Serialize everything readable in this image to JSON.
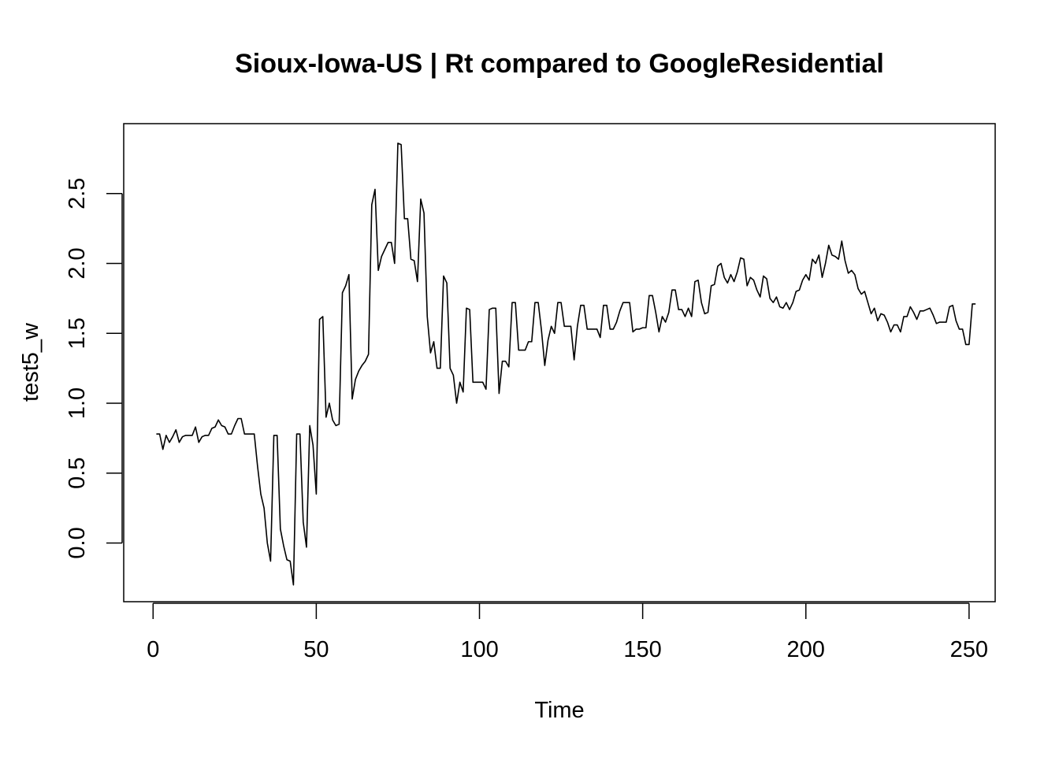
{
  "chart_data": {
    "type": "line",
    "title": "Sioux-Iowa-US | Rt compared to GoogleResidential",
    "xlabel": "Time",
    "ylabel": "test5_w",
    "xlim": [
      -9,
      258
    ],
    "ylim": [
      -0.42,
      3.0
    ],
    "grid": false,
    "x_ticks": [
      0,
      50,
      100,
      150,
      200,
      250
    ],
    "x_tick_labels": [
      "0",
      "50",
      "100",
      "150",
      "200",
      "250"
    ],
    "y_ticks": [
      0.0,
      0.5,
      1.0,
      1.5,
      2.0,
      2.5
    ],
    "y_tick_labels": [
      "0.0",
      "0.5",
      "1.0",
      "1.5",
      "2.0",
      "2.5"
    ],
    "colors": {
      "line": "#000000",
      "frame": "#000000",
      "background": "#ffffff"
    },
    "series": [
      {
        "x_start": 1,
        "values": [
          0.78,
          0.78,
          0.67,
          0.77,
          0.72,
          0.76,
          0.81,
          0.72,
          0.76,
          0.77,
          0.77,
          0.77,
          0.83,
          0.72,
          0.76,
          0.77,
          0.77,
          0.82,
          0.83,
          0.88,
          0.84,
          0.83,
          0.78,
          0.78,
          0.84,
          0.89,
          0.89,
          0.78,
          0.78,
          0.78,
          0.78,
          0.55,
          0.35,
          0.25,
          0.0,
          -0.13,
          0.77,
          0.77,
          0.1,
          -0.02,
          -0.12,
          -0.13,
          -0.3,
          0.78,
          0.78,
          0.15,
          -0.03,
          0.84,
          0.7,
          0.35,
          1.6,
          1.62,
          0.9,
          1.0,
          0.88,
          0.84,
          0.85,
          1.79,
          1.84,
          1.92,
          1.03,
          1.17,
          1.23,
          1.27,
          1.3,
          1.35,
          2.42,
          2.53,
          1.95,
          2.05,
          2.1,
          2.15,
          2.15,
          2.0,
          2.86,
          2.85,
          2.32,
          2.32,
          2.03,
          2.02,
          1.87,
          2.46,
          2.36,
          1.62,
          1.36,
          1.44,
          1.25,
          1.25,
          1.91,
          1.86,
          1.25,
          1.2,
          1.0,
          1.15,
          1.08,
          1.68,
          1.67,
          1.15,
          1.15,
          1.15,
          1.15,
          1.1,
          1.67,
          1.68,
          1.68,
          1.07,
          1.3,
          1.3,
          1.26,
          1.72,
          1.72,
          1.38,
          1.38,
          1.38,
          1.44,
          1.44,
          1.72,
          1.72,
          1.52,
          1.27,
          1.45,
          1.55,
          1.5,
          1.72,
          1.72,
          1.55,
          1.55,
          1.55,
          1.31,
          1.55,
          1.7,
          1.7,
          1.53,
          1.53,
          1.53,
          1.53,
          1.47,
          1.7,
          1.7,
          1.53,
          1.53,
          1.58,
          1.66,
          1.72,
          1.72,
          1.72,
          1.51,
          1.53,
          1.53,
          1.54,
          1.54,
          1.77,
          1.77,
          1.65,
          1.51,
          1.62,
          1.58,
          1.65,
          1.81,
          1.81,
          1.67,
          1.67,
          1.62,
          1.68,
          1.62,
          1.87,
          1.88,
          1.72,
          1.64,
          1.65,
          1.84,
          1.85,
          1.98,
          2.0,
          1.9,
          1.86,
          1.92,
          1.87,
          1.94,
          2.04,
          2.03,
          1.84,
          1.9,
          1.88,
          1.81,
          1.76,
          1.91,
          1.89,
          1.75,
          1.72,
          1.76,
          1.69,
          1.68,
          1.72,
          1.67,
          1.72,
          1.8,
          1.81,
          1.88,
          1.92,
          1.88,
          2.03,
          2.0,
          2.06,
          1.9,
          2.0,
          2.13,
          2.06,
          2.05,
          2.03,
          2.16,
          2.02,
          1.93,
          1.95,
          1.92,
          1.82,
          1.78,
          1.8,
          1.72,
          1.64,
          1.68,
          1.59,
          1.64,
          1.63,
          1.58,
          1.51,
          1.56,
          1.56,
          1.51,
          1.62,
          1.62,
          1.69,
          1.65,
          1.6,
          1.66,
          1.66,
          1.67,
          1.68,
          1.63,
          1.57,
          1.58,
          1.58,
          1.58,
          1.69,
          1.7,
          1.59,
          1.53,
          1.53,
          1.42,
          1.42,
          1.71,
          1.71
        ]
      }
    ]
  }
}
